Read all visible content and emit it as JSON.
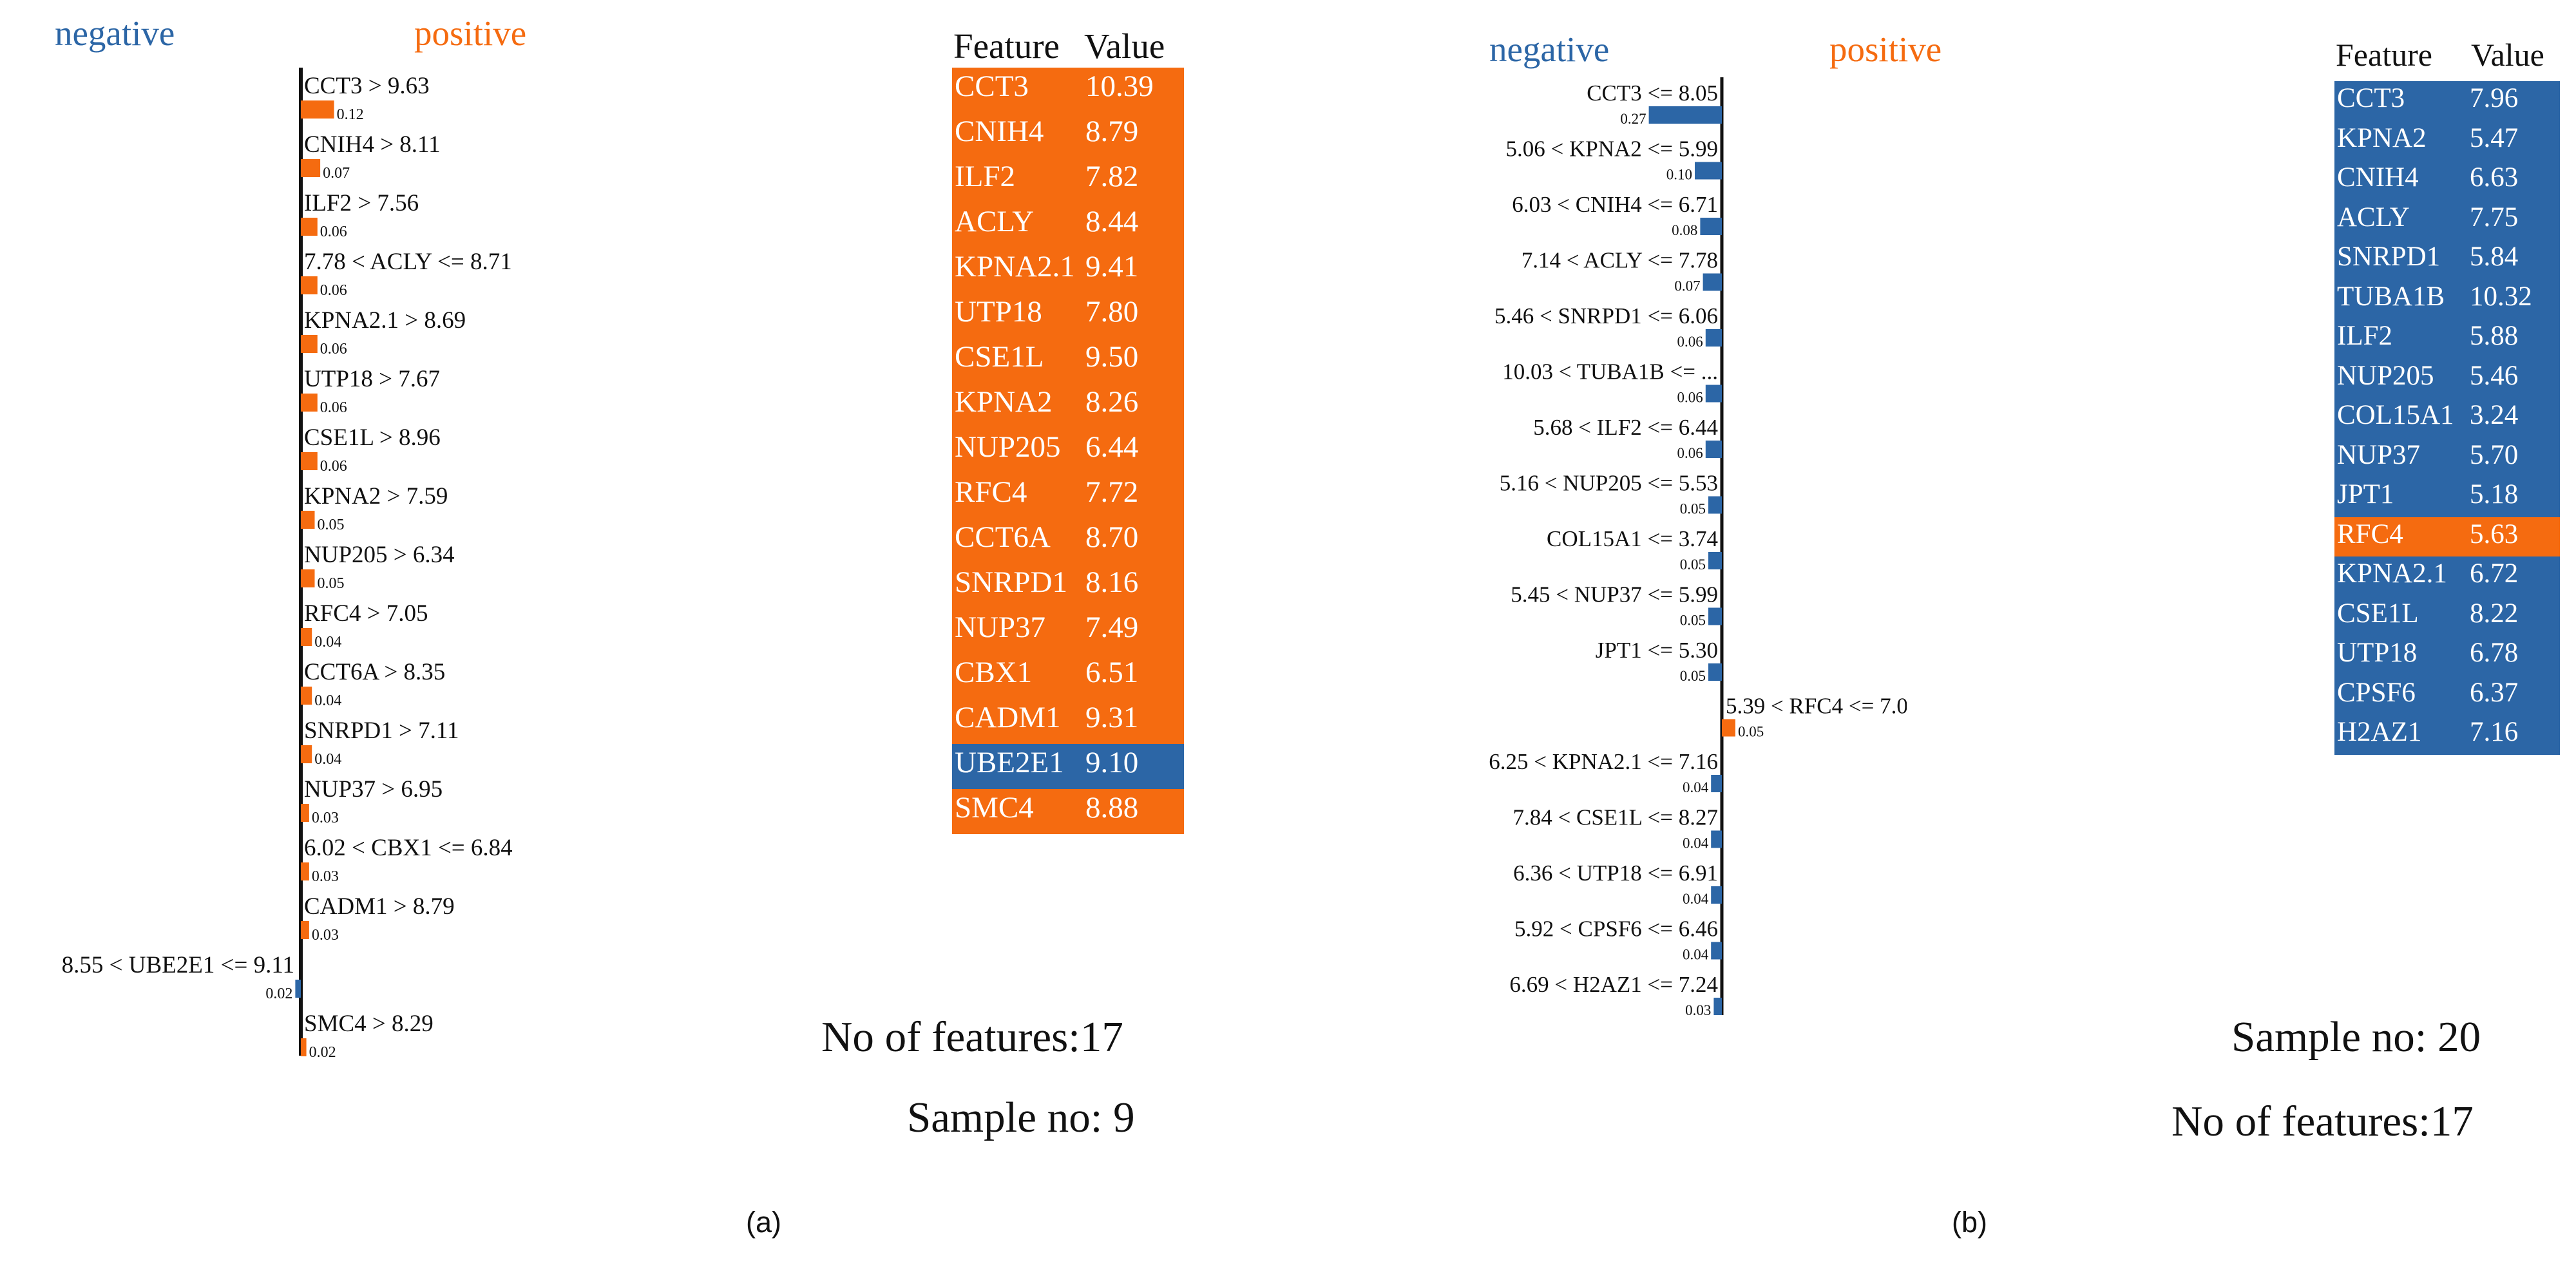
{
  "colors": {
    "positive": "#f56b10",
    "negative": "#2c66a6",
    "axis": "#111111",
    "text": "#111111"
  },
  "panels": [
    {
      "caption": "(a)",
      "negative_label": "negative",
      "positive_label": "positive",
      "features_text": "No of features:17",
      "sample_text": "Sample no: 9",
      "table": {
        "header_feature": "Feature",
        "header_value": "Value",
        "rows": [
          {
            "feature": "CCT3",
            "value": "10.39",
            "sign": "positive"
          },
          {
            "feature": "CNIH4",
            "value": "8.79",
            "sign": "positive"
          },
          {
            "feature": "ILF2",
            "value": "7.82",
            "sign": "positive"
          },
          {
            "feature": "ACLY",
            "value": "8.44",
            "sign": "positive"
          },
          {
            "feature": "KPNA2.1",
            "value": "9.41",
            "sign": "positive"
          },
          {
            "feature": "UTP18",
            "value": "7.80",
            "sign": "positive"
          },
          {
            "feature": "CSE1L",
            "value": "9.50",
            "sign": "positive"
          },
          {
            "feature": "KPNA2",
            "value": "8.26",
            "sign": "positive"
          },
          {
            "feature": "NUP205",
            "value": "6.44",
            "sign": "positive"
          },
          {
            "feature": "RFC4",
            "value": "7.72",
            "sign": "positive"
          },
          {
            "feature": "CCT6A",
            "value": "8.70",
            "sign": "positive"
          },
          {
            "feature": "SNRPD1",
            "value": "8.16",
            "sign": "positive"
          },
          {
            "feature": "NUP37",
            "value": "7.49",
            "sign": "positive"
          },
          {
            "feature": "CBX1",
            "value": "6.51",
            "sign": "positive"
          },
          {
            "feature": "CADM1",
            "value": "9.31",
            "sign": "positive"
          },
          {
            "feature": "UBE2E1",
            "value": "9.10",
            "sign": "negative"
          },
          {
            "feature": "SMC4",
            "value": "8.88",
            "sign": "positive"
          }
        ]
      }
    },
    {
      "caption": "(b)",
      "negative_label": "negative",
      "positive_label": "positive",
      "features_text": "No of features:17",
      "sample_text": "Sample no: 20",
      "table": {
        "header_feature": "Feature",
        "header_value": "Value",
        "rows": [
          {
            "feature": "CCT3",
            "value": "7.96",
            "sign": "negative"
          },
          {
            "feature": "KPNA2",
            "value": "5.47",
            "sign": "negative"
          },
          {
            "feature": "CNIH4",
            "value": "6.63",
            "sign": "negative"
          },
          {
            "feature": "ACLY",
            "value": "7.75",
            "sign": "negative"
          },
          {
            "feature": "SNRPD1",
            "value": "5.84",
            "sign": "negative"
          },
          {
            "feature": "TUBA1B",
            "value": "10.32",
            "sign": "negative"
          },
          {
            "feature": "ILF2",
            "value": "5.88",
            "sign": "negative"
          },
          {
            "feature": "NUP205",
            "value": "5.46",
            "sign": "negative"
          },
          {
            "feature": "COL15A1",
            "value": "3.24",
            "sign": "negative"
          },
          {
            "feature": "NUP37",
            "value": "5.70",
            "sign": "negative"
          },
          {
            "feature": "JPT1",
            "value": "5.18",
            "sign": "negative"
          },
          {
            "feature": "RFC4",
            "value": "5.63",
            "sign": "positive"
          },
          {
            "feature": "KPNA2.1",
            "value": "6.72",
            "sign": "negative"
          },
          {
            "feature": "CSE1L",
            "value": "8.22",
            "sign": "negative"
          },
          {
            "feature": "UTP18",
            "value": "6.78",
            "sign": "negative"
          },
          {
            "feature": "CPSF6",
            "value": "6.37",
            "sign": "negative"
          },
          {
            "feature": "H2AZ1",
            "value": "7.16",
            "sign": "negative"
          }
        ]
      }
    }
  ],
  "chart_data": [
    {
      "type": "bar",
      "orientation": "horizontal",
      "title": "",
      "xlabel": "",
      "ylabel": "",
      "legend": [
        "negative",
        "positive"
      ],
      "categories": [
        "CCT3 > 9.63",
        "CNIH4 > 8.11",
        "ILF2 > 7.56",
        "7.78 < ACLY <= 8.71",
        "KPNA2.1 > 8.69",
        "UTP18 > 7.67",
        "CSE1L > 8.96",
        "KPNA2 > 7.59",
        "NUP205 > 6.34",
        "RFC4 > 7.05",
        "CCT6A > 8.35",
        "SNRPD1 > 7.11",
        "NUP37 > 6.95",
        "6.02 < CBX1 <= 6.84",
        "CADM1 > 8.79",
        "8.55 < UBE2E1 <= 9.11",
        "SMC4 > 8.29"
      ],
      "values": [
        0.12,
        0.07,
        0.06,
        0.06,
        0.06,
        0.06,
        0.06,
        0.05,
        0.05,
        0.04,
        0.04,
        0.04,
        0.03,
        0.03,
        0.03,
        -0.02,
        0.02
      ],
      "value_labels": [
        "0.12",
        "0.07",
        "0.06",
        "0.06",
        "0.06",
        "0.06",
        "0.06",
        "0.05",
        "0.05",
        "0.04",
        "0.04",
        "0.04",
        "0.03",
        "0.03",
        "0.03",
        "0.02",
        "0.02"
      ]
    },
    {
      "type": "bar",
      "orientation": "horizontal",
      "title": "",
      "xlabel": "",
      "ylabel": "",
      "legend": [
        "negative",
        "positive"
      ],
      "categories": [
        "CCT3 <= 8.05",
        "5.06 < KPNA2 <= 5.99",
        "6.03 < CNIH4 <= 6.71",
        "7.14 < ACLY <= 7.78",
        "5.46 < SNRPD1 <= 6.06",
        "10.03 < TUBA1B <= ...",
        "5.68 < ILF2 <= 6.44",
        "5.16 < NUP205 <= 5.53",
        "COL15A1 <= 3.74",
        "5.45 < NUP37 <= 5.99",
        "JPT1 <= 5.30",
        "5.39 < RFC4 <= 7.05",
        "6.25 < KPNA2.1 <= 7.16",
        "7.84 < CSE1L <= 8.27",
        "6.36 < UTP18 <= 6.91",
        "5.92 < CPSF6 <= 6.46",
        "6.69 < H2AZ1 <= 7.24"
      ],
      "values": [
        -0.27,
        -0.1,
        -0.08,
        -0.07,
        -0.06,
        -0.06,
        -0.06,
        -0.05,
        -0.05,
        -0.05,
        -0.05,
        0.05,
        -0.04,
        -0.04,
        -0.04,
        -0.04,
        -0.03
      ],
      "value_labels": [
        "0.27",
        "0.10",
        "0.08",
        "0.07",
        "0.06",
        "0.06",
        "0.06",
        "0.05",
        "0.05",
        "0.05",
        "0.05",
        "0.05",
        "0.04",
        "0.04",
        "0.04",
        "0.04",
        "0.03"
      ]
    }
  ]
}
